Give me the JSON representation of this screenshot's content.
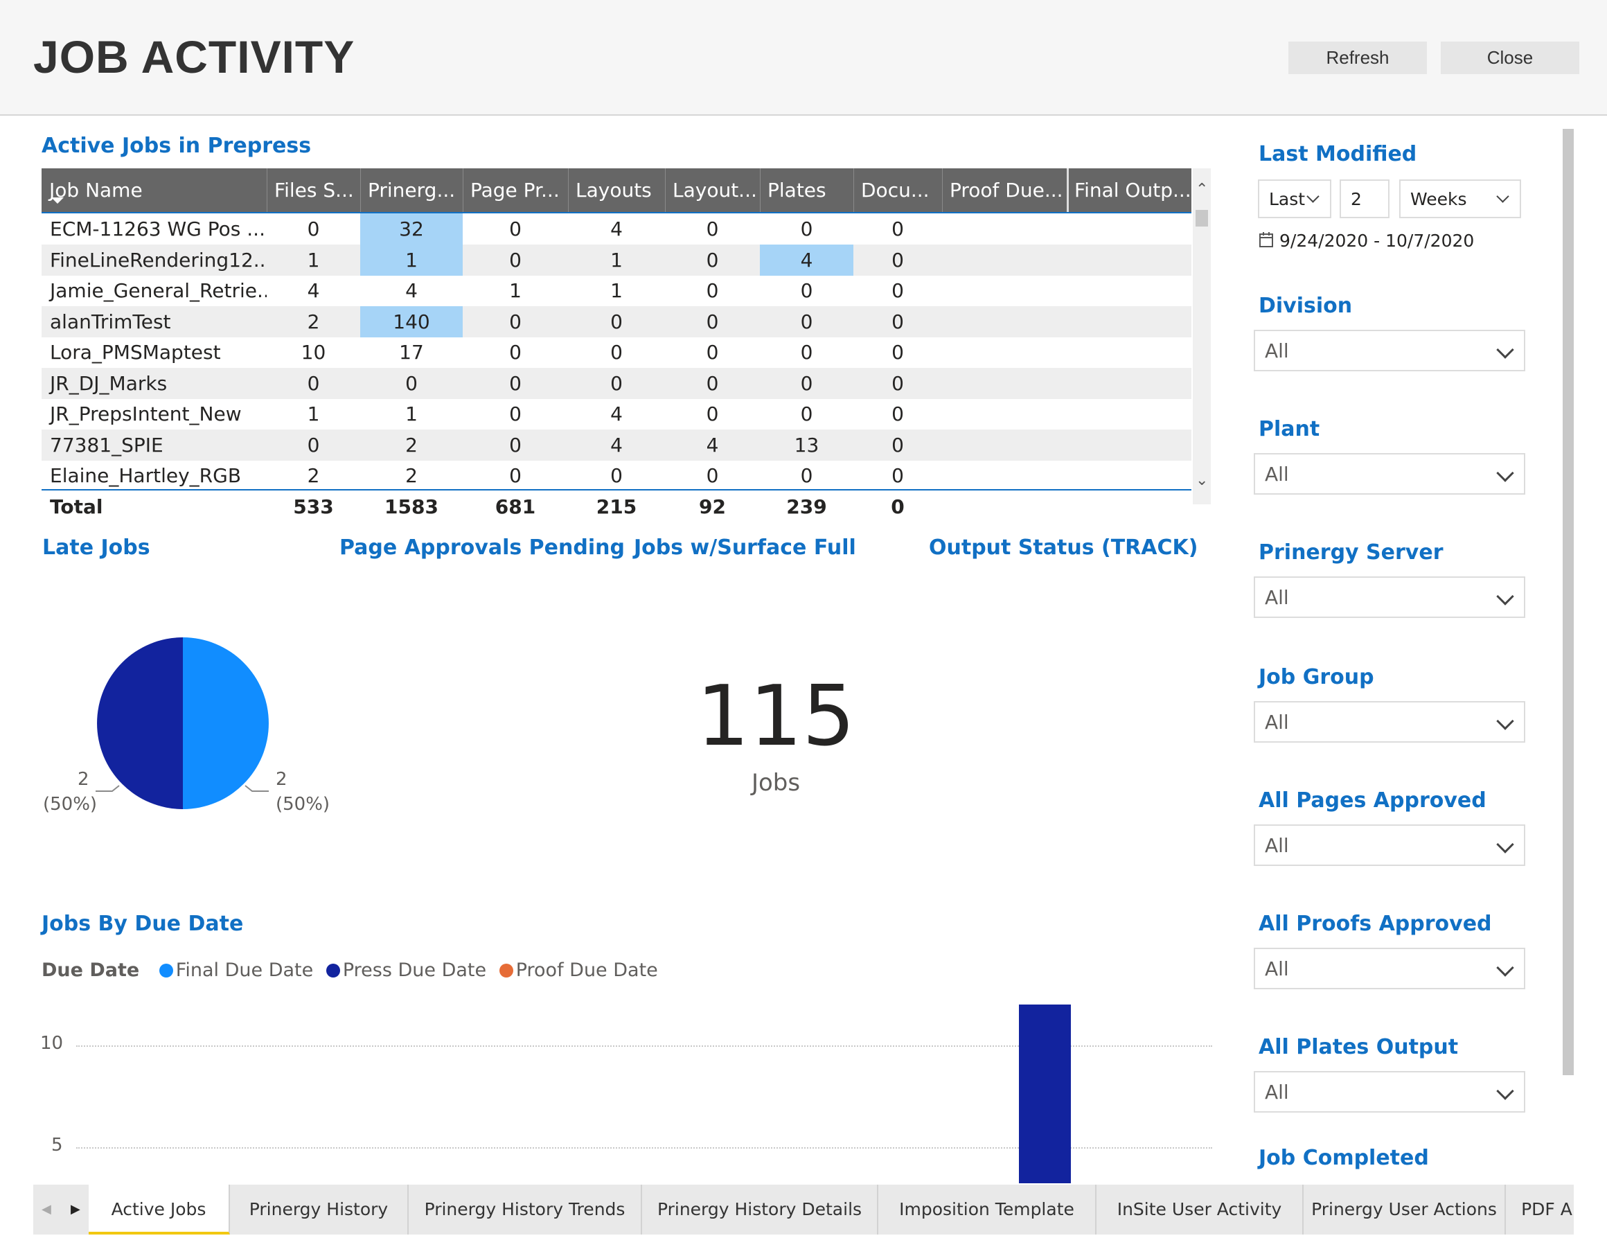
{
  "header": {
    "title": "JOB ACTIVITY",
    "refresh_label": "Refresh",
    "close_label": "Close"
  },
  "table": {
    "title": "Active Jobs in Prepress",
    "columns": [
      "Job Name",
      "Files S...",
      "Prinerg...",
      "Page Pr...",
      "Layouts",
      "Layout...",
      "Plates",
      "Docu...",
      "Proof Due...",
      "Final Outp..."
    ],
    "rows": [
      [
        "ECM-11263 WG Pos ...",
        "0",
        "32",
        "0",
        "4",
        "0",
        "0",
        "0",
        "",
        ""
      ],
      [
        "FineLineRendering12...",
        "1",
        "1",
        "0",
        "1",
        "0",
        "4",
        "0",
        "",
        ""
      ],
      [
        "Jamie_General_Retrie...",
        "4",
        "4",
        "1",
        "1",
        "0",
        "0",
        "0",
        "",
        ""
      ],
      [
        "alanTrimTest",
        "2",
        "140",
        "0",
        "0",
        "0",
        "0",
        "0",
        "",
        ""
      ],
      [
        "Lora_PMSMaptest",
        "10",
        "17",
        "0",
        "0",
        "0",
        "0",
        "0",
        "",
        ""
      ],
      [
        "JR_DJ_Marks",
        "0",
        "0",
        "0",
        "0",
        "0",
        "0",
        "0",
        "",
        ""
      ],
      [
        "JR_PrepsIntent_New",
        "1",
        "1",
        "0",
        "4",
        "0",
        "0",
        "0",
        "",
        ""
      ],
      [
        "77381_SPIE",
        "0",
        "2",
        "0",
        "4",
        "4",
        "13",
        "0",
        "",
        ""
      ],
      [
        "Elaine_Hartley_RGB",
        "2",
        "2",
        "0",
        "0",
        "0",
        "0",
        "0",
        "",
        ""
      ]
    ],
    "total": [
      "Total",
      "533",
      "1583",
      "681",
      "215",
      "92",
      "239",
      "0",
      "",
      ""
    ]
  },
  "sections": {
    "late_jobs": "Late Jobs",
    "page_approvals": "Page Approvals Pending",
    "surface_full": "Jobs w/Surface Full",
    "output_status": "Output Status (TRACK)",
    "jobs_by_due_date": "Jobs By Due Date"
  },
  "late_jobs_pie": {
    "left_value": "2",
    "left_pct": "(50%)",
    "right_value": "2",
    "right_pct": "(50%)"
  },
  "card": {
    "value": "115",
    "label": "Jobs"
  },
  "legend": {
    "title": "Due Date",
    "items": [
      {
        "label": "Final Due Date",
        "color": "#118dff"
      },
      {
        "label": "Press Due Date",
        "color": "#12239e"
      },
      {
        "label": "Proof Due Date",
        "color": "#e66c37"
      }
    ]
  },
  "chart_data": {
    "type": "bar",
    "title": "Jobs By Due Date",
    "ylim": [
      0,
      13
    ],
    "yticks": [
      "10",
      "5"
    ],
    "series": [
      {
        "name": "Press Due Date",
        "color": "#12239e",
        "values": [
          12
        ]
      }
    ],
    "grid": true,
    "legend_placement": "top-left"
  },
  "filters": {
    "last_modified": {
      "title": "Last Modified",
      "mode": "Last",
      "count": "2",
      "unit": "Weeks",
      "range": "9/24/2020 - 10/7/2020"
    },
    "division": {
      "title": "Division",
      "value": "All"
    },
    "plant": {
      "title": "Plant",
      "value": "All"
    },
    "prinergy_server": {
      "title": "Prinergy Server",
      "value": "All"
    },
    "job_group": {
      "title": "Job Group",
      "value": "All"
    },
    "all_pages_approved": {
      "title": "All Pages Approved",
      "value": "All"
    },
    "all_proofs_approved": {
      "title": "All Proofs Approved",
      "value": "All"
    },
    "all_plates_output": {
      "title": "All Plates Output",
      "value": "All"
    },
    "job_completed": {
      "title": "Job Completed"
    }
  },
  "tabs": [
    "Active Jobs",
    "Prinergy History",
    "Prinergy History Trends",
    "Prinergy History Details",
    "Imposition Template",
    "InSite User Activity",
    "Prinergy User Actions",
    "PDF A"
  ]
}
